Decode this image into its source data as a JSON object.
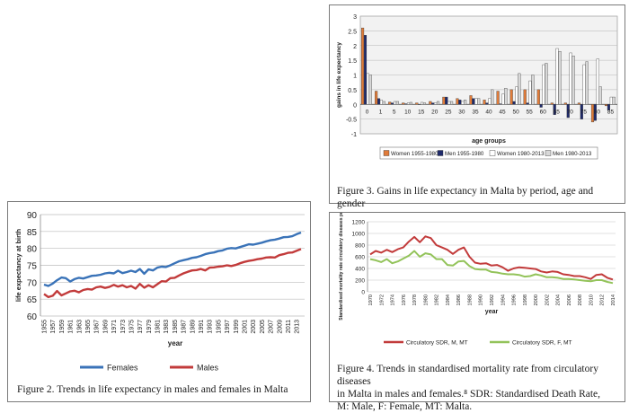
{
  "chart_data": [
    {
      "type": "bar",
      "figure": "fig3",
      "categories": [
        "0",
        "1",
        "5",
        "10",
        "15",
        "20",
        "25",
        "30",
        "35",
        "40",
        "45",
        "50",
        "55",
        "60",
        "65",
        "70",
        "75",
        "80",
        "85"
      ],
      "series": [
        {
          "name": "Women 1955-1980",
          "color": "#e07b39",
          "values": [
            2.6,
            0.45,
            0.08,
            0.05,
            0.05,
            0.1,
            0.25,
            0.2,
            0.3,
            0.15,
            0.45,
            0.5,
            0.5,
            0.5,
            0.05,
            0.05,
            0.05,
            -0.6,
            -0.05
          ]
        },
        {
          "name": "Men 1955-1980",
          "color": "#1f2a6b",
          "values": [
            2.35,
            0.2,
            0.05,
            0.02,
            0.0,
            0.05,
            0.25,
            0.15,
            0.2,
            0.05,
            0.02,
            0.1,
            0.05,
            -0.1,
            -0.35,
            -0.45,
            -0.5,
            -0.55,
            -0.2
          ]
        },
        {
          "name": "Women 1980-2013",
          "color": "#ffffff",
          "values": [
            1.05,
            0.15,
            0.1,
            0.05,
            0.07,
            0.05,
            0.1,
            0.1,
            0.2,
            0.2,
            0.35,
            0.6,
            0.8,
            1.35,
            1.9,
            1.75,
            1.35,
            1.55,
            0.25
          ]
        },
        {
          "name": "Men 1980-2013",
          "color": "#d8d8d8",
          "values": [
            1.0,
            0.1,
            0.1,
            0.07,
            0.05,
            0.1,
            0.1,
            0.15,
            0.2,
            0.5,
            0.55,
            1.05,
            1.0,
            1.4,
            1.8,
            1.65,
            1.45,
            0.6,
            0.25
          ]
        }
      ],
      "ylim": [
        -1,
        3
      ],
      "yticks": [
        "3",
        "2.5",
        "2",
        "1.5",
        "1",
        "0.5",
        "0",
        "-0.5",
        "-1"
      ],
      "xlabel": "age groups",
      "ylabel": "gains in life expectancy",
      "grid": true,
      "legend": "bottom"
    },
    {
      "type": "line",
      "figure": "fig2",
      "x": [
        1955,
        1956,
        1957,
        1958,
        1959,
        1960,
        1961,
        1962,
        1963,
        1964,
        1965,
        1966,
        1967,
        1968,
        1969,
        1970,
        1971,
        1972,
        1973,
        1974,
        1975,
        1976,
        1977,
        1978,
        1979,
        1980,
        1981,
        1982,
        1983,
        1984,
        1985,
        1986,
        1987,
        1988,
        1989,
        1990,
        1991,
        1992,
        1993,
        1994,
        1995,
        1996,
        1997,
        1998,
        1999,
        2000,
        2001,
        2002,
        2003,
        2004,
        2005,
        2006,
        2007,
        2008,
        2009,
        2010,
        2011,
        2012,
        2013,
        2014
      ],
      "series": [
        {
          "name": "Females",
          "color": "#3a73b8",
          "values": [
            69.3,
            68.9,
            69.6,
            70.6,
            71.4,
            71.2,
            70.2,
            70.9,
            71.3,
            71.1,
            71.5,
            71.9,
            72.0,
            72.2,
            72.6,
            72.8,
            72.6,
            73.4,
            72.7,
            73.0,
            73.4,
            73.0,
            73.9,
            72.5,
            73.8,
            73.5,
            74.3,
            74.6,
            74.5,
            75.0,
            75.6,
            76.2,
            76.5,
            76.8,
            77.2,
            77.4,
            77.8,
            78.3,
            78.6,
            78.8,
            79.2,
            79.4,
            79.9,
            80.1,
            80.0,
            80.4,
            80.8,
            81.2,
            81.1,
            81.4,
            81.7,
            82.1,
            82.4,
            82.6,
            82.9,
            83.3,
            83.4,
            83.6,
            84.2,
            84.7
          ]
        },
        {
          "name": "Males",
          "color": "#c23b3b",
          "values": [
            66.5,
            65.6,
            66.0,
            67.4,
            66.1,
            66.7,
            67.3,
            67.5,
            67.0,
            67.7,
            68.0,
            67.8,
            68.5,
            68.7,
            68.3,
            68.6,
            69.2,
            68.7,
            69.1,
            68.5,
            68.9,
            68.1,
            69.5,
            68.4,
            69.1,
            68.5,
            69.4,
            70.3,
            70.2,
            71.2,
            71.3,
            72.0,
            72.6,
            73.1,
            73.5,
            73.6,
            73.9,
            73.5,
            74.3,
            74.4,
            74.6,
            74.7,
            75.0,
            74.8,
            75.1,
            75.6,
            76.0,
            76.3,
            76.5,
            76.8,
            77.0,
            77.3,
            77.4,
            77.3,
            78.0,
            78.3,
            78.7,
            78.8,
            79.3,
            79.8
          ]
        }
      ],
      "ylim": [
        60,
        90
      ],
      "yticks": [
        "90",
        "85",
        "80",
        "75",
        "70",
        "65",
        "60"
      ],
      "xticks": [
        "1955",
        "1957",
        "1959",
        "1961",
        "1963",
        "1965",
        "1967",
        "1969",
        "1971",
        "1973",
        "1975",
        "1977",
        "1979",
        "1981",
        "1983",
        "1985",
        "1987",
        "1989",
        "1991",
        "1993",
        "1995",
        "1997",
        "1999",
        "2001",
        "2003",
        "2005",
        "2007",
        "2009",
        "2011",
        "2013"
      ],
      "xlabel": "year",
      "ylabel": "life expectancy at birth",
      "grid": true,
      "legend": "bottom"
    },
    {
      "type": "line",
      "figure": "fig4",
      "x": [
        1970,
        1971,
        1972,
        1973,
        1974,
        1975,
        1976,
        1977,
        1978,
        1979,
        1980,
        1981,
        1982,
        1983,
        1984,
        1985,
        1986,
        1987,
        1988,
        1989,
        1990,
        1991,
        1992,
        1993,
        1994,
        1995,
        1996,
        1997,
        1998,
        1999,
        2000,
        2001,
        2002,
        2003,
        2004,
        2005,
        2006,
        2007,
        2008,
        2009,
        2010,
        2011,
        2012,
        2013,
        2014
      ],
      "series": [
        {
          "name": "Circulatory SDR, M, MT",
          "color": "#c23b3b",
          "values": [
            640,
            700,
            670,
            720,
            680,
            730,
            760,
            860,
            940,
            850,
            950,
            920,
            800,
            760,
            720,
            650,
            720,
            760,
            600,
            500,
            480,
            490,
            450,
            460,
            420,
            360,
            400,
            420,
            410,
            400,
            390,
            350,
            330,
            350,
            340,
            300,
            290,
            270,
            270,
            250,
            220,
            290,
            300,
            240,
            210
          ]
        },
        {
          "name": "Circulatory SDR, F, MT",
          "color": "#93c35a",
          "values": [
            560,
            540,
            510,
            560,
            490,
            520,
            570,
            620,
            700,
            600,
            660,
            640,
            560,
            560,
            460,
            450,
            520,
            530,
            440,
            390,
            380,
            380,
            340,
            330,
            310,
            300,
            300,
            290,
            260,
            270,
            300,
            280,
            250,
            250,
            240,
            220,
            220,
            210,
            200,
            190,
            180,
            200,
            200,
            170,
            150
          ]
        }
      ],
      "ylim": [
        0,
        1200
      ],
      "yticks": [
        "1200",
        "1000",
        "800",
        "600",
        "400",
        "200",
        "0"
      ],
      "xticks": [
        "1970",
        "1972",
        "1974",
        "1976",
        "1978",
        "1980",
        "1982",
        "1984",
        "1986",
        "1988",
        "1990",
        "1992",
        "1994",
        "1996",
        "1998",
        "2000",
        "2002",
        "2004",
        "2006",
        "2008",
        "2010",
        "2012",
        "2014"
      ],
      "xlabel": "year",
      "ylabel": "Standardised mortality rate circulatory diseases per 100000",
      "grid": true,
      "legend": "bottom"
    }
  ],
  "captions": {
    "fig3": "Figure 3. Gains in life expectancy in Malta by period, age and gender",
    "fig2": "Figure 2. Trends in life expectancy in males and females in Malta",
    "fig4_line1": "Figure 4. Trends in standardised mortality rate from circulatory diseases",
    "fig4_line2": "in Malta in males and females.⁸ SDR: Standardised Death Rate,",
    "fig4_line3": "M: Male, F: Female, MT: Malta."
  }
}
